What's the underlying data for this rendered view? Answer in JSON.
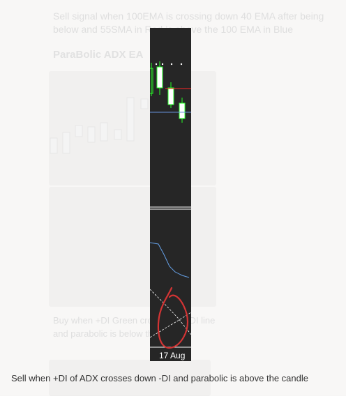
{
  "background": {
    "top_text": "Sell signal when 100EMA is crossing down 40 EMA after being below and 55SMA in Red is above the 100 EMA in Blue",
    "section_title": "ParaBolic ADX EA",
    "desc_text": "Buy when +DI Green crosses up -DI line and parabolic is below the candles"
  },
  "chart": {
    "date_label": "17 Aug",
    "colors": {
      "background": "#000000",
      "candle_body": "#ffffff",
      "candle_border": "#00ff00",
      "red_ma": "#ff0000",
      "blue_ma": "#4a7fd4",
      "adx_line": "#4a90e2",
      "annotation": "#cc1111"
    }
  },
  "caption": "Sell when +DI of ADX crosses down -DI and parabolic is above the candle"
}
